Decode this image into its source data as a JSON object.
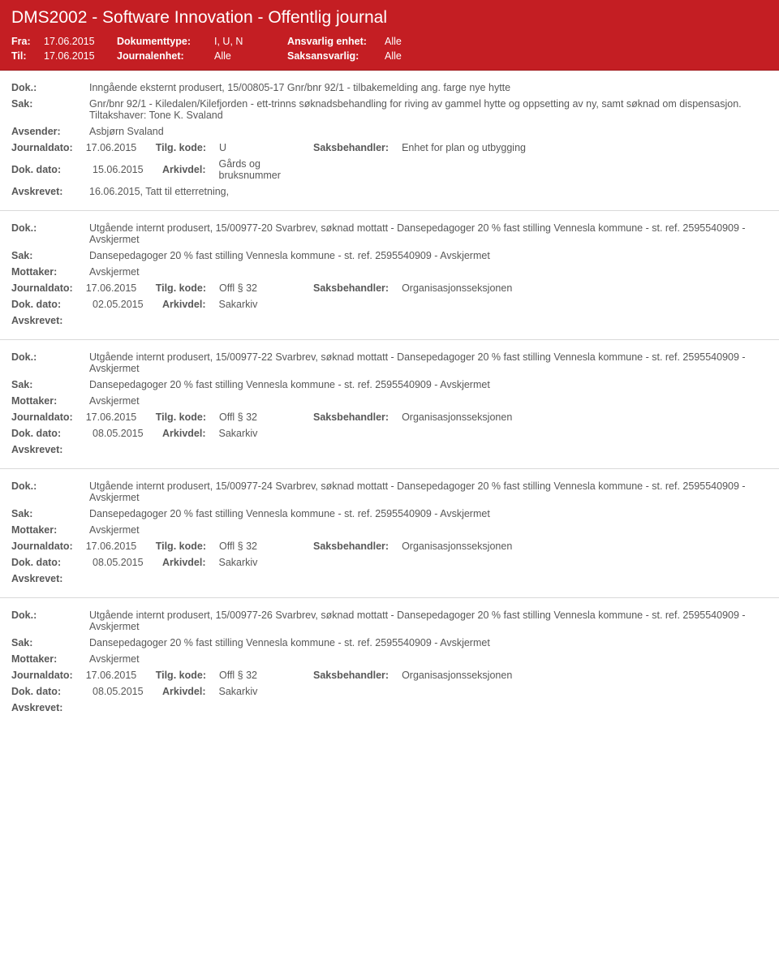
{
  "header": {
    "title": "DMS2002 - Software Innovation - Offentlig journal",
    "fra_label": "Fra:",
    "til_label": "Til:",
    "fra_value": "17.06.2015",
    "til_value": "17.06.2015",
    "dokumenttype_label": "Dokumenttype:",
    "dokumenttype_value": "I, U, N",
    "journalenhet_label": "Journalenhet:",
    "journalenhet_value": "Alle",
    "ansvarlig_label": "Ansvarlig enhet:",
    "ansvarlig_value": "Alle",
    "saksansvarlig_label": "Saksansvarlig:",
    "saksansvarlig_value": "Alle"
  },
  "labels": {
    "dok": "Dok.:",
    "sak": "Sak:",
    "avsender": "Avsender:",
    "mottaker": "Mottaker:",
    "journaldato": "Journaldato:",
    "tilg": "Tilg. kode:",
    "saksbehandler": "Saksbehandler:",
    "dokdato": "Dok. dato:",
    "arkivdel": "Arkivdel:",
    "avskrevet": "Avskrevet:"
  },
  "entries": [
    {
      "dok": "Inngående eksternt produsert, 15/00805-17 Gnr/bnr 92/1 - tilbakemelding ang. farge nye hytte",
      "sak": "Gnr/bnr 92/1 - Kiledalen/Kilefjorden - ett-trinns søknadsbehandling for riving av gammel hytte og oppsetting av ny, samt søknad om dispensasjon. Tiltakshaver: Tone K. Svaland",
      "party_label": "Avsender:",
      "party_value": "Asbjørn Svaland",
      "journaldato": "17.06.2015",
      "tilg": "U",
      "saksbehandler": "Enhet for plan og utbygging",
      "dokdato": "15.06.2015",
      "arkivdel": "Gårds og bruksnummer",
      "avskrevet": "16.06.2015, Tatt til etterretning,"
    },
    {
      "dok": "Utgående internt produsert, 15/00977-20 Svarbrev, søknad mottatt - Dansepedagoger 20 % fast stilling Vennesla kommune - st. ref. 2595540909 - Avskjermet",
      "sak": "Dansepedagoger 20 % fast stilling Vennesla kommune - st. ref. 2595540909 - Avskjermet",
      "party_label": "Mottaker:",
      "party_value": "Avskjermet",
      "journaldato": "17.06.2015",
      "tilg": "Offl § 32",
      "saksbehandler": "Organisasjonsseksjonen",
      "dokdato": "02.05.2015",
      "arkivdel": "Sakarkiv",
      "avskrevet": ""
    },
    {
      "dok": "Utgående internt produsert, 15/00977-22 Svarbrev, søknad mottatt - Dansepedagoger 20 % fast stilling Vennesla kommune - st. ref. 2595540909 - Avskjermet",
      "sak": "Dansepedagoger 20 % fast stilling Vennesla kommune - st. ref. 2595540909 - Avskjermet",
      "party_label": "Mottaker:",
      "party_value": "Avskjermet",
      "journaldato": "17.06.2015",
      "tilg": "Offl § 32",
      "saksbehandler": "Organisasjonsseksjonen",
      "dokdato": "08.05.2015",
      "arkivdel": "Sakarkiv",
      "avskrevet": ""
    },
    {
      "dok": "Utgående internt produsert, 15/00977-24 Svarbrev, søknad mottatt - Dansepedagoger 20 % fast stilling Vennesla kommune - st. ref. 2595540909 - Avskjermet",
      "sak": "Dansepedagoger 20 % fast stilling Vennesla kommune - st. ref. 2595540909 - Avskjermet",
      "party_label": "Mottaker:",
      "party_value": "Avskjermet",
      "journaldato": "17.06.2015",
      "tilg": "Offl § 32",
      "saksbehandler": "Organisasjonsseksjonen",
      "dokdato": "08.05.2015",
      "arkivdel": "Sakarkiv",
      "avskrevet": ""
    },
    {
      "dok": "Utgående internt produsert, 15/00977-26 Svarbrev, søknad mottatt - Dansepedagoger 20 % fast stilling Vennesla kommune - st. ref. 2595540909 - Avskjermet",
      "sak": "Dansepedagoger 20 % fast stilling Vennesla kommune - st. ref. 2595540909 - Avskjermet",
      "party_label": "Mottaker:",
      "party_value": "Avskjermet",
      "journaldato": "17.06.2015",
      "tilg": "Offl § 32",
      "saksbehandler": "Organisasjonsseksjonen",
      "dokdato": "08.05.2015",
      "arkivdel": "Sakarkiv",
      "avskrevet": ""
    }
  ]
}
